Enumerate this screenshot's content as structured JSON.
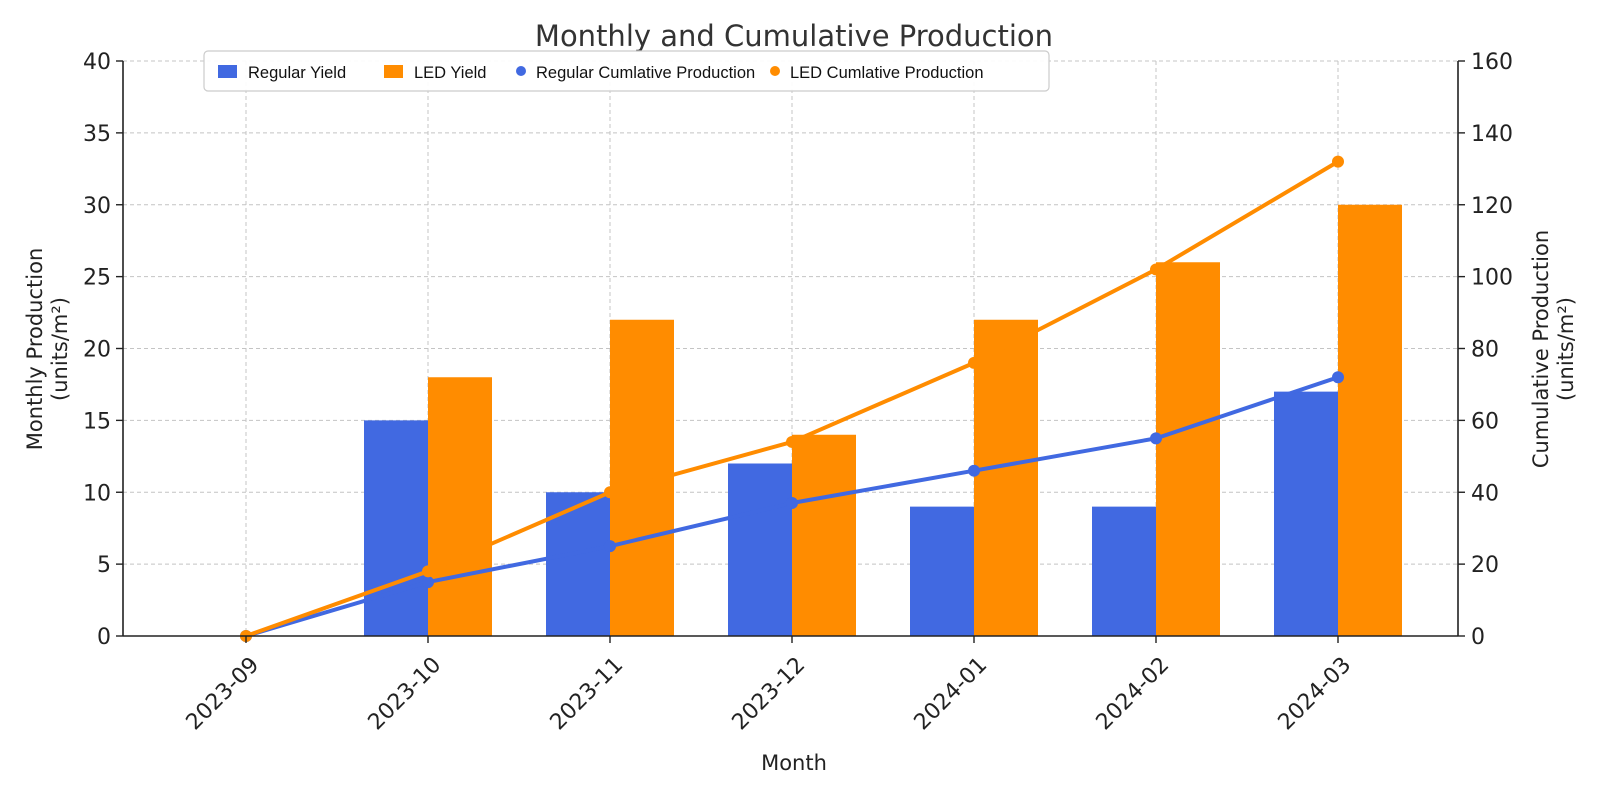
{
  "chart_data": {
    "type": "bar",
    "title": "Monthly and Cumulative Production",
    "xlabel": "Month",
    "ylabel_left_line1": "Monthly Production",
    "ylabel_left_line2": "(units/m²)",
    "ylabel_right_line1": "Cumulative Production",
    "ylabel_right_line2": "(units/m²)",
    "categories": [
      "2023-09",
      "2023-10",
      "2023-11",
      "2023-12",
      "2024-01",
      "2024-02",
      "2024-03"
    ],
    "ylim_left": [
      0,
      40
    ],
    "yticks_left": [
      "0",
      "5",
      "10",
      "15",
      "20",
      "25",
      "30",
      "35",
      "40"
    ],
    "ylim_right": [
      0,
      160
    ],
    "yticks_right": [
      "0",
      "20",
      "40",
      "60",
      "80",
      "100",
      "120",
      "140",
      "160"
    ],
    "grid": true,
    "legend_position": "top-left",
    "bar_series": [
      {
        "name": "Regular Yield",
        "color": "#4169e1",
        "values": [
          0,
          15,
          10,
          12,
          9,
          9,
          17
        ]
      },
      {
        "name": "LED Yield",
        "color": "#ff8c00",
        "values": [
          0,
          18,
          22,
          14,
          22,
          26,
          30
        ]
      }
    ],
    "line_series": [
      {
        "name": "Regular Cumlative Production",
        "color": "#4169e1",
        "values": [
          0,
          15,
          25,
          37,
          46,
          55,
          72
        ]
      },
      {
        "name": "LED Cumlative Production",
        "color": "#ff8c00",
        "values": [
          0,
          18,
          40,
          54,
          76,
          102,
          132
        ]
      }
    ]
  }
}
